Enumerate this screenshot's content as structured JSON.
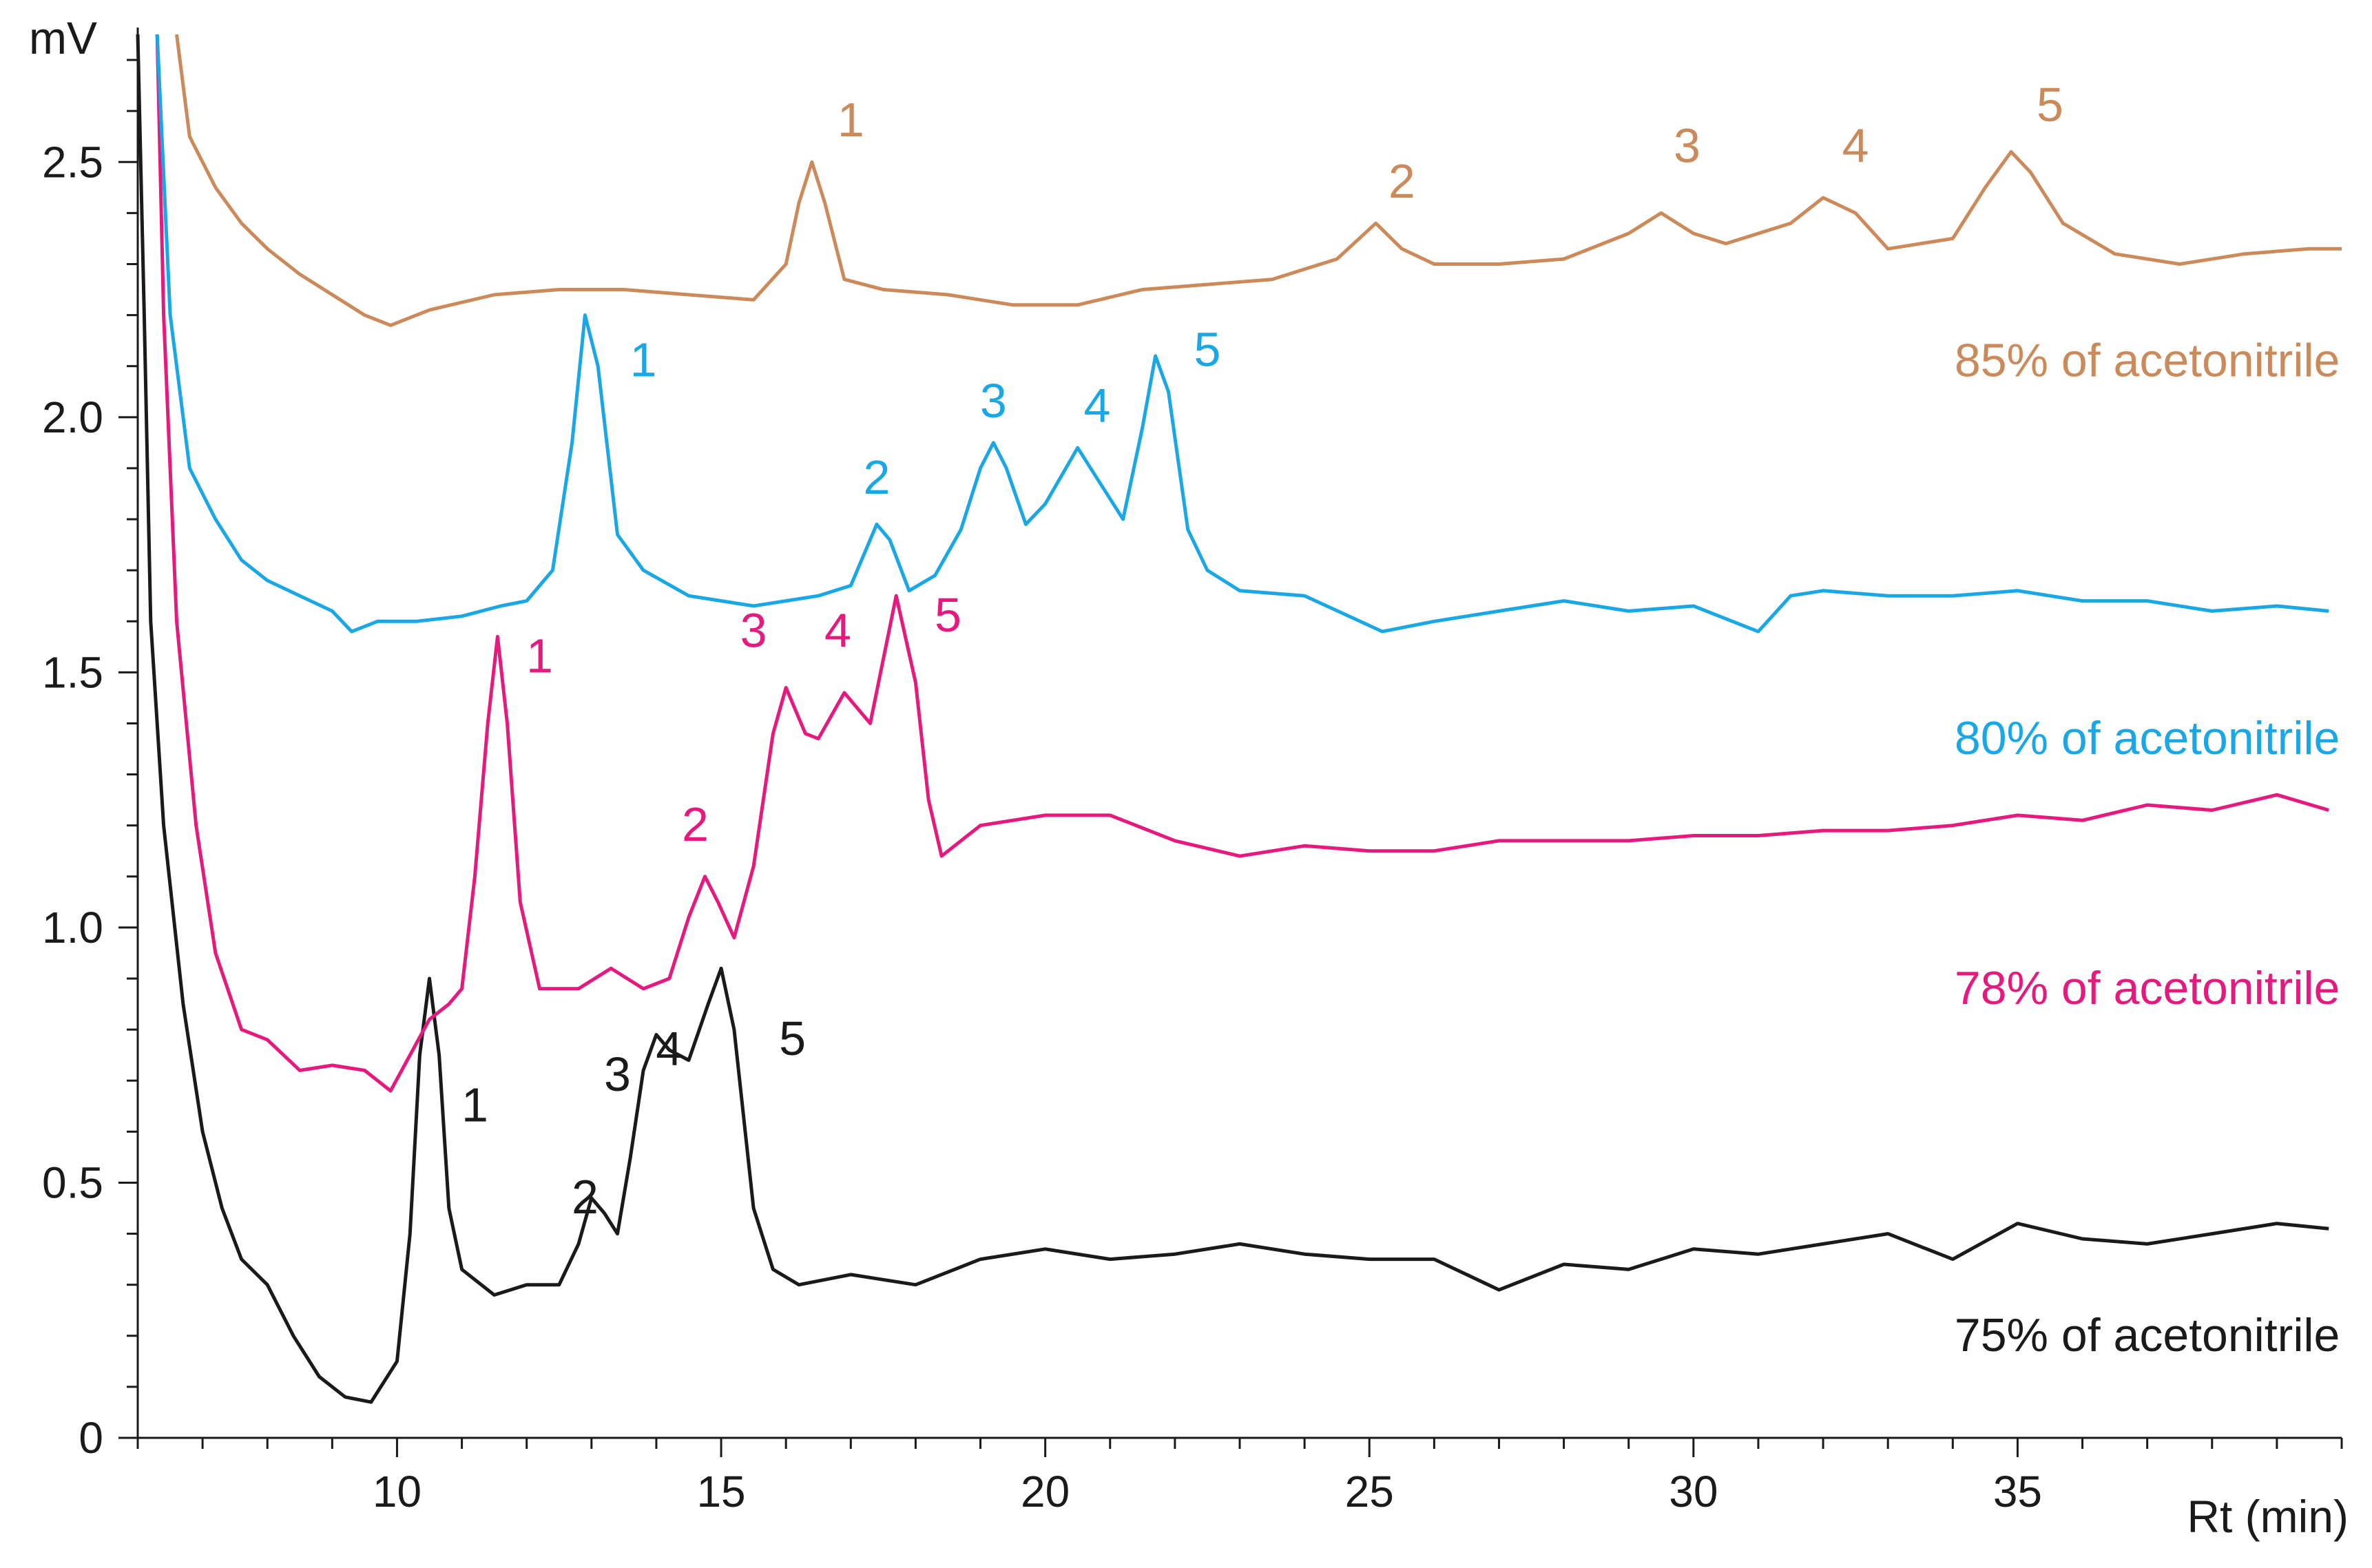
{
  "chart_data": {
    "type": "line",
    "xlabel": "Rt (min)",
    "ylabel": "mV",
    "xlim": [
      6,
      40
    ],
    "ylim": [
      0,
      2.75
    ],
    "xticks": [
      10,
      15,
      20,
      25,
      30,
      35
    ],
    "yticks": [
      0,
      0.5,
      1.0,
      1.5,
      2.0,
      2.5
    ],
    "xtick_labels": [
      "10",
      "15",
      "20",
      "25",
      "30",
      "35"
    ],
    "ytick_labels": [
      "0",
      "0.5",
      "1.0",
      "1.5",
      "2.0",
      "2.5"
    ],
    "grid": false,
    "legend": "inline labels at right",
    "series": [
      {
        "name": "75% of acetonitrile",
        "color": "#1a1a1a",
        "label_at": [
          37,
          0.17
        ],
        "points": [
          [
            6.0,
            2.75
          ],
          [
            6.1,
            2.2
          ],
          [
            6.2,
            1.6
          ],
          [
            6.4,
            1.2
          ],
          [
            6.7,
            0.85
          ],
          [
            7.0,
            0.6
          ],
          [
            7.3,
            0.45
          ],
          [
            7.6,
            0.35
          ],
          [
            8.0,
            0.3
          ],
          [
            8.4,
            0.2
          ],
          [
            8.8,
            0.12
          ],
          [
            9.2,
            0.08
          ],
          [
            9.6,
            0.07
          ],
          [
            10.0,
            0.15
          ],
          [
            10.2,
            0.4
          ],
          [
            10.35,
            0.75
          ],
          [
            10.5,
            0.9
          ],
          [
            10.65,
            0.75
          ],
          [
            10.8,
            0.45
          ],
          [
            11.0,
            0.33
          ],
          [
            11.5,
            0.28
          ],
          [
            12.0,
            0.3
          ],
          [
            12.5,
            0.3
          ],
          [
            12.8,
            0.38
          ],
          [
            13.0,
            0.47
          ],
          [
            13.2,
            0.44
          ],
          [
            13.4,
            0.4
          ],
          [
            13.6,
            0.55
          ],
          [
            13.8,
            0.72
          ],
          [
            14.0,
            0.79
          ],
          [
            14.2,
            0.76
          ],
          [
            14.5,
            0.74
          ],
          [
            14.8,
            0.85
          ],
          [
            15.0,
            0.92
          ],
          [
            15.2,
            0.8
          ],
          [
            15.5,
            0.45
          ],
          [
            15.8,
            0.33
          ],
          [
            16.2,
            0.3
          ],
          [
            17,
            0.32
          ],
          [
            18,
            0.3
          ],
          [
            19,
            0.35
          ],
          [
            20,
            0.37
          ],
          [
            21,
            0.35
          ],
          [
            22,
            0.36
          ],
          [
            23,
            0.38
          ],
          [
            24,
            0.36
          ],
          [
            25,
            0.35
          ],
          [
            26,
            0.35
          ],
          [
            27,
            0.29
          ],
          [
            28,
            0.34
          ],
          [
            29,
            0.33
          ],
          [
            30,
            0.37
          ],
          [
            31,
            0.36
          ],
          [
            32,
            0.38
          ],
          [
            33,
            0.4
          ],
          [
            34,
            0.35
          ],
          [
            35,
            0.42
          ],
          [
            36,
            0.39
          ],
          [
            37,
            0.38
          ],
          [
            38,
            0.4
          ],
          [
            39,
            0.42
          ],
          [
            39.8,
            0.41
          ]
        ],
        "peaks": [
          {
            "label": "1",
            "x": 11.2,
            "y": 0.62
          },
          {
            "label": "2",
            "x": 12.9,
            "y": 0.44
          },
          {
            "label": "3",
            "x": 13.4,
            "y": 0.68
          },
          {
            "label": "4",
            "x": 14.2,
            "y": 0.73
          },
          {
            "label": "5",
            "x": 16.1,
            "y": 0.75
          }
        ]
      },
      {
        "name": "78% of acetonitrile",
        "color": "#e6197e",
        "label_at": [
          37,
          0.85
        ],
        "points": [
          [
            6.3,
            2.75
          ],
          [
            6.4,
            2.2
          ],
          [
            6.6,
            1.6
          ],
          [
            6.9,
            1.2
          ],
          [
            7.2,
            0.95
          ],
          [
            7.6,
            0.8
          ],
          [
            8.0,
            0.78
          ],
          [
            8.5,
            0.72
          ],
          [
            9.0,
            0.73
          ],
          [
            9.5,
            0.72
          ],
          [
            9.9,
            0.68
          ],
          [
            10.2,
            0.75
          ],
          [
            10.5,
            0.82
          ],
          [
            10.8,
            0.85
          ],
          [
            11.0,
            0.88
          ],
          [
            11.2,
            1.1
          ],
          [
            11.4,
            1.4
          ],
          [
            11.55,
            1.57
          ],
          [
            11.7,
            1.4
          ],
          [
            11.9,
            1.05
          ],
          [
            12.2,
            0.88
          ],
          [
            12.8,
            0.88
          ],
          [
            13.3,
            0.92
          ],
          [
            13.8,
            0.88
          ],
          [
            14.2,
            0.9
          ],
          [
            14.5,
            1.02
          ],
          [
            14.75,
            1.1
          ],
          [
            14.95,
            1.05
          ],
          [
            15.2,
            0.98
          ],
          [
            15.5,
            1.12
          ],
          [
            15.8,
            1.38
          ],
          [
            16.0,
            1.47
          ],
          [
            16.3,
            1.38
          ],
          [
            16.5,
            1.37
          ],
          [
            16.9,
            1.46
          ],
          [
            17.3,
            1.4
          ],
          [
            17.7,
            1.65
          ],
          [
            18.0,
            1.48
          ],
          [
            18.2,
            1.25
          ],
          [
            18.4,
            1.14
          ],
          [
            19,
            1.2
          ],
          [
            20,
            1.22
          ],
          [
            21,
            1.22
          ],
          [
            22,
            1.17
          ],
          [
            23,
            1.14
          ],
          [
            24,
            1.16
          ],
          [
            25,
            1.15
          ],
          [
            26,
            1.15
          ],
          [
            27,
            1.17
          ],
          [
            28,
            1.17
          ],
          [
            29,
            1.17
          ],
          [
            30,
            1.18
          ],
          [
            31,
            1.18
          ],
          [
            32,
            1.19
          ],
          [
            33,
            1.19
          ],
          [
            34,
            1.2
          ],
          [
            35,
            1.22
          ],
          [
            36,
            1.21
          ],
          [
            37,
            1.24
          ],
          [
            38,
            1.23
          ],
          [
            39,
            1.26
          ],
          [
            39.8,
            1.23
          ]
        ],
        "peaks": [
          {
            "label": "1",
            "x": 12.2,
            "y": 1.5
          },
          {
            "label": "2",
            "x": 14.6,
            "y": 1.17
          },
          {
            "label": "3",
            "x": 15.5,
            "y": 1.55
          },
          {
            "label": "4",
            "x": 16.8,
            "y": 1.55
          },
          {
            "label": "5",
            "x": 18.5,
            "y": 1.58
          }
        ]
      },
      {
        "name": "80% of acetonitrile",
        "color": "#1aa7e6",
        "label_at": [
          37,
          1.34
        ],
        "points": [
          [
            6.3,
            2.75
          ],
          [
            6.5,
            2.2
          ],
          [
            6.8,
            1.9
          ],
          [
            7.2,
            1.8
          ],
          [
            7.6,
            1.72
          ],
          [
            8.0,
            1.68
          ],
          [
            8.5,
            1.65
          ],
          [
            9.0,
            1.62
          ],
          [
            9.3,
            1.58
          ],
          [
            9.7,
            1.6
          ],
          [
            10.3,
            1.6
          ],
          [
            11.0,
            1.61
          ],
          [
            11.6,
            1.63
          ],
          [
            12.0,
            1.64
          ],
          [
            12.4,
            1.7
          ],
          [
            12.7,
            1.95
          ],
          [
            12.9,
            2.2
          ],
          [
            13.1,
            2.1
          ],
          [
            13.4,
            1.77
          ],
          [
            13.8,
            1.7
          ],
          [
            14.5,
            1.65
          ],
          [
            15.5,
            1.63
          ],
          [
            16.5,
            1.65
          ],
          [
            17.0,
            1.67
          ],
          [
            17.2,
            1.73
          ],
          [
            17.4,
            1.79
          ],
          [
            17.6,
            1.76
          ],
          [
            17.9,
            1.66
          ],
          [
            18.3,
            1.69
          ],
          [
            18.7,
            1.78
          ],
          [
            19.0,
            1.9
          ],
          [
            19.2,
            1.95
          ],
          [
            19.4,
            1.9
          ],
          [
            19.7,
            1.79
          ],
          [
            20.0,
            1.83
          ],
          [
            20.5,
            1.94
          ],
          [
            20.8,
            1.88
          ],
          [
            21.2,
            1.8
          ],
          [
            21.5,
            1.98
          ],
          [
            21.7,
            2.12
          ],
          [
            21.9,
            2.05
          ],
          [
            22.2,
            1.78
          ],
          [
            22.5,
            1.7
          ],
          [
            23,
            1.66
          ],
          [
            24,
            1.65
          ],
          [
            25.2,
            1.58
          ],
          [
            26,
            1.6
          ],
          [
            27,
            1.62
          ],
          [
            28,
            1.64
          ],
          [
            29,
            1.62
          ],
          [
            30,
            1.63
          ],
          [
            31,
            1.58
          ],
          [
            31.5,
            1.65
          ],
          [
            32,
            1.66
          ],
          [
            33,
            1.65
          ],
          [
            34,
            1.65
          ],
          [
            35,
            1.66
          ],
          [
            36,
            1.64
          ],
          [
            37,
            1.64
          ],
          [
            38,
            1.62
          ],
          [
            39,
            1.63
          ],
          [
            39.8,
            1.62
          ]
        ],
        "peaks": [
          {
            "label": "1",
            "x": 13.8,
            "y": 2.08
          },
          {
            "label": "2",
            "x": 17.4,
            "y": 1.85
          },
          {
            "label": "3",
            "x": 19.2,
            "y": 2.0
          },
          {
            "label": "4",
            "x": 20.8,
            "y": 1.99
          },
          {
            "label": "5",
            "x": 22.5,
            "y": 2.1
          }
        ]
      },
      {
        "name": "85% of acetonitrile",
        "color": "#cc8a5a",
        "label_at": [
          37,
          2.08
        ],
        "points": [
          [
            6.6,
            2.75
          ],
          [
            6.8,
            2.55
          ],
          [
            7.2,
            2.45
          ],
          [
            7.6,
            2.38
          ],
          [
            8.0,
            2.33
          ],
          [
            8.5,
            2.28
          ],
          [
            9.0,
            2.24
          ],
          [
            9.5,
            2.2
          ],
          [
            9.9,
            2.18
          ],
          [
            10.5,
            2.21
          ],
          [
            11.5,
            2.24
          ],
          [
            12.5,
            2.25
          ],
          [
            13.5,
            2.25
          ],
          [
            14.5,
            2.24
          ],
          [
            15.5,
            2.23
          ],
          [
            16.0,
            2.3
          ],
          [
            16.2,
            2.42
          ],
          [
            16.4,
            2.5
          ],
          [
            16.6,
            2.42
          ],
          [
            16.9,
            2.27
          ],
          [
            17.5,
            2.25
          ],
          [
            18.5,
            2.24
          ],
          [
            19.5,
            2.22
          ],
          [
            20.5,
            2.22
          ],
          [
            21.5,
            2.25
          ],
          [
            22.5,
            2.26
          ],
          [
            23.5,
            2.27
          ],
          [
            24.5,
            2.31
          ],
          [
            25.1,
            2.38
          ],
          [
            25.5,
            2.33
          ],
          [
            26.0,
            2.3
          ],
          [
            27.0,
            2.3
          ],
          [
            28.0,
            2.31
          ],
          [
            29.0,
            2.36
          ],
          [
            29.5,
            2.4
          ],
          [
            30.0,
            2.36
          ],
          [
            30.5,
            2.34
          ],
          [
            31.5,
            2.38
          ],
          [
            32.0,
            2.43
          ],
          [
            32.5,
            2.4
          ],
          [
            33.0,
            2.33
          ],
          [
            34.0,
            2.35
          ],
          [
            34.5,
            2.45
          ],
          [
            34.9,
            2.52
          ],
          [
            35.2,
            2.48
          ],
          [
            35.7,
            2.38
          ],
          [
            36.5,
            2.32
          ],
          [
            37.5,
            2.3
          ],
          [
            38.5,
            2.32
          ],
          [
            39.5,
            2.33
          ],
          [
            40.0,
            2.33
          ]
        ],
        "peaks": [
          {
            "label": "1",
            "x": 17.0,
            "y": 2.55
          },
          {
            "label": "2",
            "x": 25.5,
            "y": 2.43
          },
          {
            "label": "3",
            "x": 29.9,
            "y": 2.5
          },
          {
            "label": "4",
            "x": 32.5,
            "y": 2.5
          },
          {
            "label": "5",
            "x": 35.5,
            "y": 2.58
          }
        ]
      }
    ]
  }
}
